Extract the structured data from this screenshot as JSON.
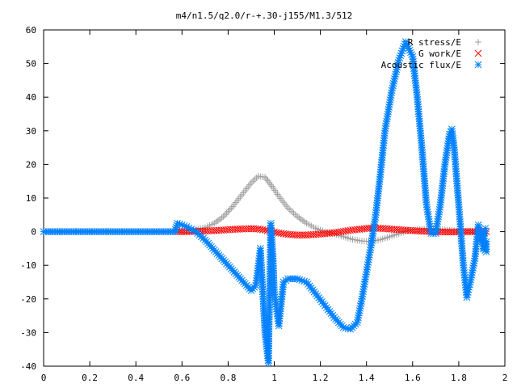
{
  "chart_data": {
    "type": "scatter",
    "title": "m4/n1.5/q2.0/r-+.30-j155/M1.3/512",
    "xlabel": "",
    "ylabel": "",
    "xlim": [
      0,
      2
    ],
    "ylim": [
      -40,
      60
    ],
    "grid": false,
    "legend_position": "top-right",
    "x_ticks": [
      "0",
      "0.2",
      "0.4",
      "0.6",
      "0.8",
      "1",
      "1.2",
      "1.4",
      "1.6",
      "1.8",
      "2"
    ],
    "y_ticks": [
      "-40",
      "-30",
      "-20",
      "-10",
      "0",
      "10",
      "20",
      "30",
      "40",
      "50",
      "60"
    ],
    "series": [
      {
        "name": "R stress/E",
        "marker": "plus",
        "color": "#a0a0a0",
        "points": [
          [
            0.58,
            0
          ],
          [
            0.62,
            0.2
          ],
          [
            0.66,
            0.6
          ],
          [
            0.7,
            1.2
          ],
          [
            0.74,
            2.5
          ],
          [
            0.78,
            4.5
          ],
          [
            0.82,
            7.5
          ],
          [
            0.86,
            11
          ],
          [
            0.9,
            14.5
          ],
          [
            0.93,
            16.5
          ],
          [
            0.96,
            16.2
          ],
          [
            0.99,
            13.5
          ],
          [
            1.02,
            10.5
          ],
          [
            1.06,
            7
          ],
          [
            1.1,
            4.5
          ],
          [
            1.14,
            2.5
          ],
          [
            1.18,
            1
          ],
          [
            1.22,
            0
          ],
          [
            1.26,
            -0.6
          ],
          [
            1.3,
            -1.5
          ],
          [
            1.34,
            -2.3
          ],
          [
            1.38,
            -2.8
          ],
          [
            1.42,
            -2.9
          ],
          [
            1.46,
            -2.4
          ],
          [
            1.5,
            -1.5
          ],
          [
            1.54,
            -0.6
          ],
          [
            1.58,
            0.3
          ],
          [
            1.62,
            0.6
          ],
          [
            1.66,
            0.8
          ],
          [
            1.7,
            0.7
          ],
          [
            1.74,
            0.5
          ],
          [
            1.78,
            0.3
          ],
          [
            1.82,
            0.2
          ],
          [
            1.86,
            0.1
          ],
          [
            1.9,
            0.05
          ],
          [
            1.92,
            0
          ]
        ]
      },
      {
        "name": "G work/E",
        "marker": "cross",
        "color": "#ff0000",
        "points": [
          [
            0.58,
            0
          ],
          [
            0.62,
            0
          ],
          [
            0.66,
            0.1
          ],
          [
            0.7,
            0.2
          ],
          [
            0.74,
            0.3
          ],
          [
            0.78,
            0.5
          ],
          [
            0.82,
            0.7
          ],
          [
            0.86,
            0.8
          ],
          [
            0.9,
            0.9
          ],
          [
            0.93,
            0.8
          ],
          [
            0.96,
            0.5
          ],
          [
            0.99,
            0
          ],
          [
            1.02,
            -0.4
          ],
          [
            1.06,
            -0.8
          ],
          [
            1.1,
            -1.0
          ],
          [
            1.14,
            -1.0
          ],
          [
            1.18,
            -0.8
          ],
          [
            1.22,
            -0.6
          ],
          [
            1.26,
            -0.3
          ],
          [
            1.3,
            0.1
          ],
          [
            1.34,
            0.5
          ],
          [
            1.38,
            0.8
          ],
          [
            1.42,
            1.1
          ],
          [
            1.46,
            1.0
          ],
          [
            1.5,
            0.8
          ],
          [
            1.54,
            0.6
          ],
          [
            1.58,
            0.4
          ],
          [
            1.62,
            0.2
          ],
          [
            1.66,
            0.1
          ],
          [
            1.7,
            0
          ],
          [
            1.74,
            -0.1
          ],
          [
            1.78,
            -0.1
          ],
          [
            1.82,
            0
          ],
          [
            1.86,
            0
          ],
          [
            1.9,
            0
          ],
          [
            1.92,
            0
          ]
        ]
      },
      {
        "name": "Acoustic flux/E",
        "marker": "star",
        "color": "#0080ff",
        "points": [
          [
            0.0,
            0
          ],
          [
            0.1,
            0
          ],
          [
            0.2,
            0
          ],
          [
            0.3,
            0
          ],
          [
            0.4,
            0
          ],
          [
            0.5,
            0
          ],
          [
            0.57,
            0
          ],
          [
            0.58,
            2.5
          ],
          [
            0.62,
            1.5
          ],
          [
            0.66,
            0
          ],
          [
            0.7,
            -2.5
          ],
          [
            0.74,
            -5.5
          ],
          [
            0.78,
            -8.5
          ],
          [
            0.82,
            -11.5
          ],
          [
            0.86,
            -14.5
          ],
          [
            0.9,
            -17.5
          ],
          [
            0.92,
            -16
          ],
          [
            0.94,
            -5
          ],
          [
            0.96,
            -30
          ],
          [
            0.975,
            -39
          ],
          [
            0.985,
            2.5
          ],
          [
            0.995,
            -8
          ],
          [
            1.0,
            -18
          ],
          [
            1.02,
            -28
          ],
          [
            1.04,
            -15
          ],
          [
            1.06,
            -14
          ],
          [
            1.1,
            -14
          ],
          [
            1.14,
            -15
          ],
          [
            1.18,
            -18.5
          ],
          [
            1.22,
            -22
          ],
          [
            1.26,
            -25.5
          ],
          [
            1.3,
            -28.5
          ],
          [
            1.33,
            -29
          ],
          [
            1.36,
            -27
          ],
          [
            1.38,
            -20
          ],
          [
            1.4,
            -12
          ],
          [
            1.42,
            -4
          ],
          [
            1.44,
            5
          ],
          [
            1.46,
            17
          ],
          [
            1.48,
            30
          ],
          [
            1.51,
            42
          ],
          [
            1.54,
            51
          ],
          [
            1.57,
            56.5
          ],
          [
            1.6,
            52
          ],
          [
            1.62,
            40
          ],
          [
            1.64,
            25
          ],
          [
            1.66,
            8
          ],
          [
            1.68,
            -0.5
          ],
          [
            1.7,
            -0.5
          ],
          [
            1.72,
            8
          ],
          [
            1.74,
            20
          ],
          [
            1.76,
            29
          ],
          [
            1.77,
            30.5
          ],
          [
            1.78,
            25
          ],
          [
            1.8,
            8
          ],
          [
            1.82,
            -10
          ],
          [
            1.835,
            -19.5
          ],
          [
            1.85,
            -15
          ],
          [
            1.87,
            -8
          ],
          [
            1.885,
            2
          ],
          [
            1.895,
            -3
          ],
          [
            1.9,
            0
          ],
          [
            1.91,
            -5
          ],
          [
            1.92,
            -6
          ],
          [
            1.92,
            -3
          ],
          [
            1.905,
            -5
          ],
          [
            1.915,
            1
          ]
        ]
      }
    ]
  }
}
